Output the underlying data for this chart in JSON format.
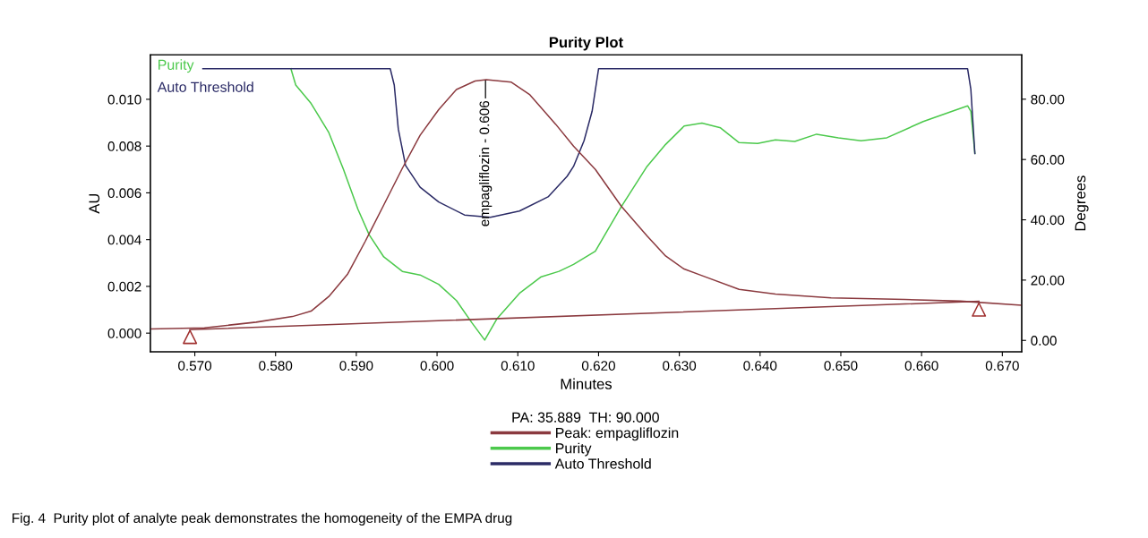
{
  "chart_data": {
    "type": "line",
    "title": "Purity Plot",
    "xlabel": "Minutes",
    "ylabel": "AU",
    "y2label": "Degrees",
    "legend_title": "PA: 35.889  TH: 90.000",
    "legend": "bottom",
    "grid": false,
    "xlim": [
      0.5645,
      0.6724
    ],
    "xticks": [
      {
        "value": 0.57,
        "label": "0.570"
      },
      {
        "value": 0.58,
        "label": "0.580"
      },
      {
        "value": 0.59,
        "label": "0.590"
      },
      {
        "value": 0.6,
        "label": "0.600"
      },
      {
        "value": 0.61,
        "label": "0.610"
      },
      {
        "value": 0.62,
        "label": "0.620"
      },
      {
        "value": 0.63,
        "label": "0.630"
      },
      {
        "value": 0.64,
        "label": "0.640"
      },
      {
        "value": 0.65,
        "label": "0.650"
      },
      {
        "value": 0.66,
        "label": "0.660"
      },
      {
        "value": 0.67,
        "label": "0.670"
      }
    ],
    "ylim": [
      -0.0008,
      0.0119
    ],
    "yticks": [
      {
        "value": 0,
        "label": "0.000"
      },
      {
        "value": 0.002,
        "label": "0.002"
      },
      {
        "value": 0.004,
        "label": "0.004"
      },
      {
        "value": 0.006,
        "label": "0.006"
      },
      {
        "value": 0.008,
        "label": "0.008"
      },
      {
        "value": 0.01,
        "label": "0.010"
      }
    ],
    "y2lim": [
      -3.8,
      94.7
    ],
    "y2ticks": [
      {
        "value": 0,
        "label": "0.00"
      },
      {
        "value": 20,
        "label": "20.00"
      },
      {
        "value": 40,
        "label": "40.00"
      },
      {
        "value": 60,
        "label": "60.00"
      },
      {
        "value": 80,
        "label": "80.00"
      }
    ],
    "series": [
      {
        "name": "Peak: empagliflozin",
        "color": "#8b3a3f",
        "x": [
          0.5645,
          0.5712,
          0.5776,
          0.5821,
          0.5844,
          0.5866,
          0.5889,
          0.5911,
          0.5934,
          0.5957,
          0.5979,
          0.6002,
          0.6024,
          0.6047,
          0.6061,
          0.6092,
          0.6115,
          0.6147,
          0.6169,
          0.6196,
          0.6228,
          0.626,
          0.6283,
          0.6306,
          0.6328,
          0.6374,
          0.6419,
          0.6488,
          0.6579,
          0.6648,
          0.6724
        ],
        "values": [
          0.00018,
          0.00023,
          0.00047,
          0.00071,
          0.00094,
          0.00157,
          0.00251,
          0.00392,
          0.00548,
          0.00705,
          0.00846,
          0.00956,
          0.01042,
          0.01078,
          0.01084,
          0.01073,
          0.01019,
          0.00893,
          0.008,
          0.007,
          0.00543,
          0.00416,
          0.0033,
          0.00274,
          0.00246,
          0.00187,
          0.00167,
          0.00151,
          0.00144,
          0.00137,
          0.00119
        ]
      },
      {
        "name": "Purity",
        "color": "#4cc94c",
        "axis": "y2",
        "x": [
          0.5819,
          0.5825,
          0.5844,
          0.5866,
          0.5884,
          0.5902,
          0.5916,
          0.5934,
          0.5957,
          0.5979,
          0.6002,
          0.6024,
          0.6043,
          0.6059,
          0.6074,
          0.6102,
          0.6129,
          0.6151,
          0.6169,
          0.6196,
          0.6228,
          0.626,
          0.6283,
          0.6306,
          0.6328,
          0.6351,
          0.6374,
          0.6397,
          0.6419,
          0.6443,
          0.647,
          0.6497,
          0.6525,
          0.6557,
          0.6602,
          0.6638,
          0.6657,
          0.6661,
          0.6666
        ],
        "values": [
          90.1,
          84.7,
          78.6,
          68.9,
          56.8,
          43.5,
          35.0,
          27.7,
          22.9,
          21.7,
          18.6,
          13.2,
          5.9,
          0.1,
          7.1,
          15.6,
          21.1,
          22.9,
          25.2,
          29.6,
          44.3,
          57.7,
          65.0,
          71.1,
          72.1,
          70.5,
          65.6,
          65.3,
          66.5,
          66.0,
          68.4,
          67.2,
          66.2,
          67.2,
          72.6,
          76.0,
          77.8,
          76.0,
          62.0
        ]
      },
      {
        "name": "Auto Threshold",
        "color": "#2b2b66",
        "axis": "y2",
        "x": [
          0.571,
          0.5942,
          0.5947,
          0.5952,
          0.5961,
          0.5979,
          0.6002,
          0.6034,
          0.6066,
          0.6102,
          0.6138,
          0.6161,
          0.6169,
          0.6182,
          0.6192,
          0.62,
          0.6657,
          0.6661,
          0.6666
        ],
        "values": [
          90.1,
          90.1,
          84.7,
          70.1,
          58.0,
          50.8,
          45.9,
          41.6,
          40.8,
          42.9,
          47.7,
          54.4,
          57.7,
          66.2,
          76.0,
          90.1,
          90.1,
          83.3,
          62.0
        ]
      },
      {
        "color": "#8b3a3f",
        "x": [
          0.5694,
          0.6671
        ],
        "values": [
          0.00015,
          0.00136
        ]
      },
      {
        "type": "scatter",
        "marker": "triangle",
        "color": "#a0302f",
        "x": [
          0.5694,
          0.6671
        ],
        "values": [
          -0.00016,
          0.00101
        ]
      }
    ],
    "annotations": [
      {
        "text": "empagliflozin - 0.606",
        "x": 0.606,
        "y": 0.0108
      },
      "Fig. 4  Purity plot of analyte peak demonstrates the homogeneity of the EMPA drug"
    ]
  }
}
